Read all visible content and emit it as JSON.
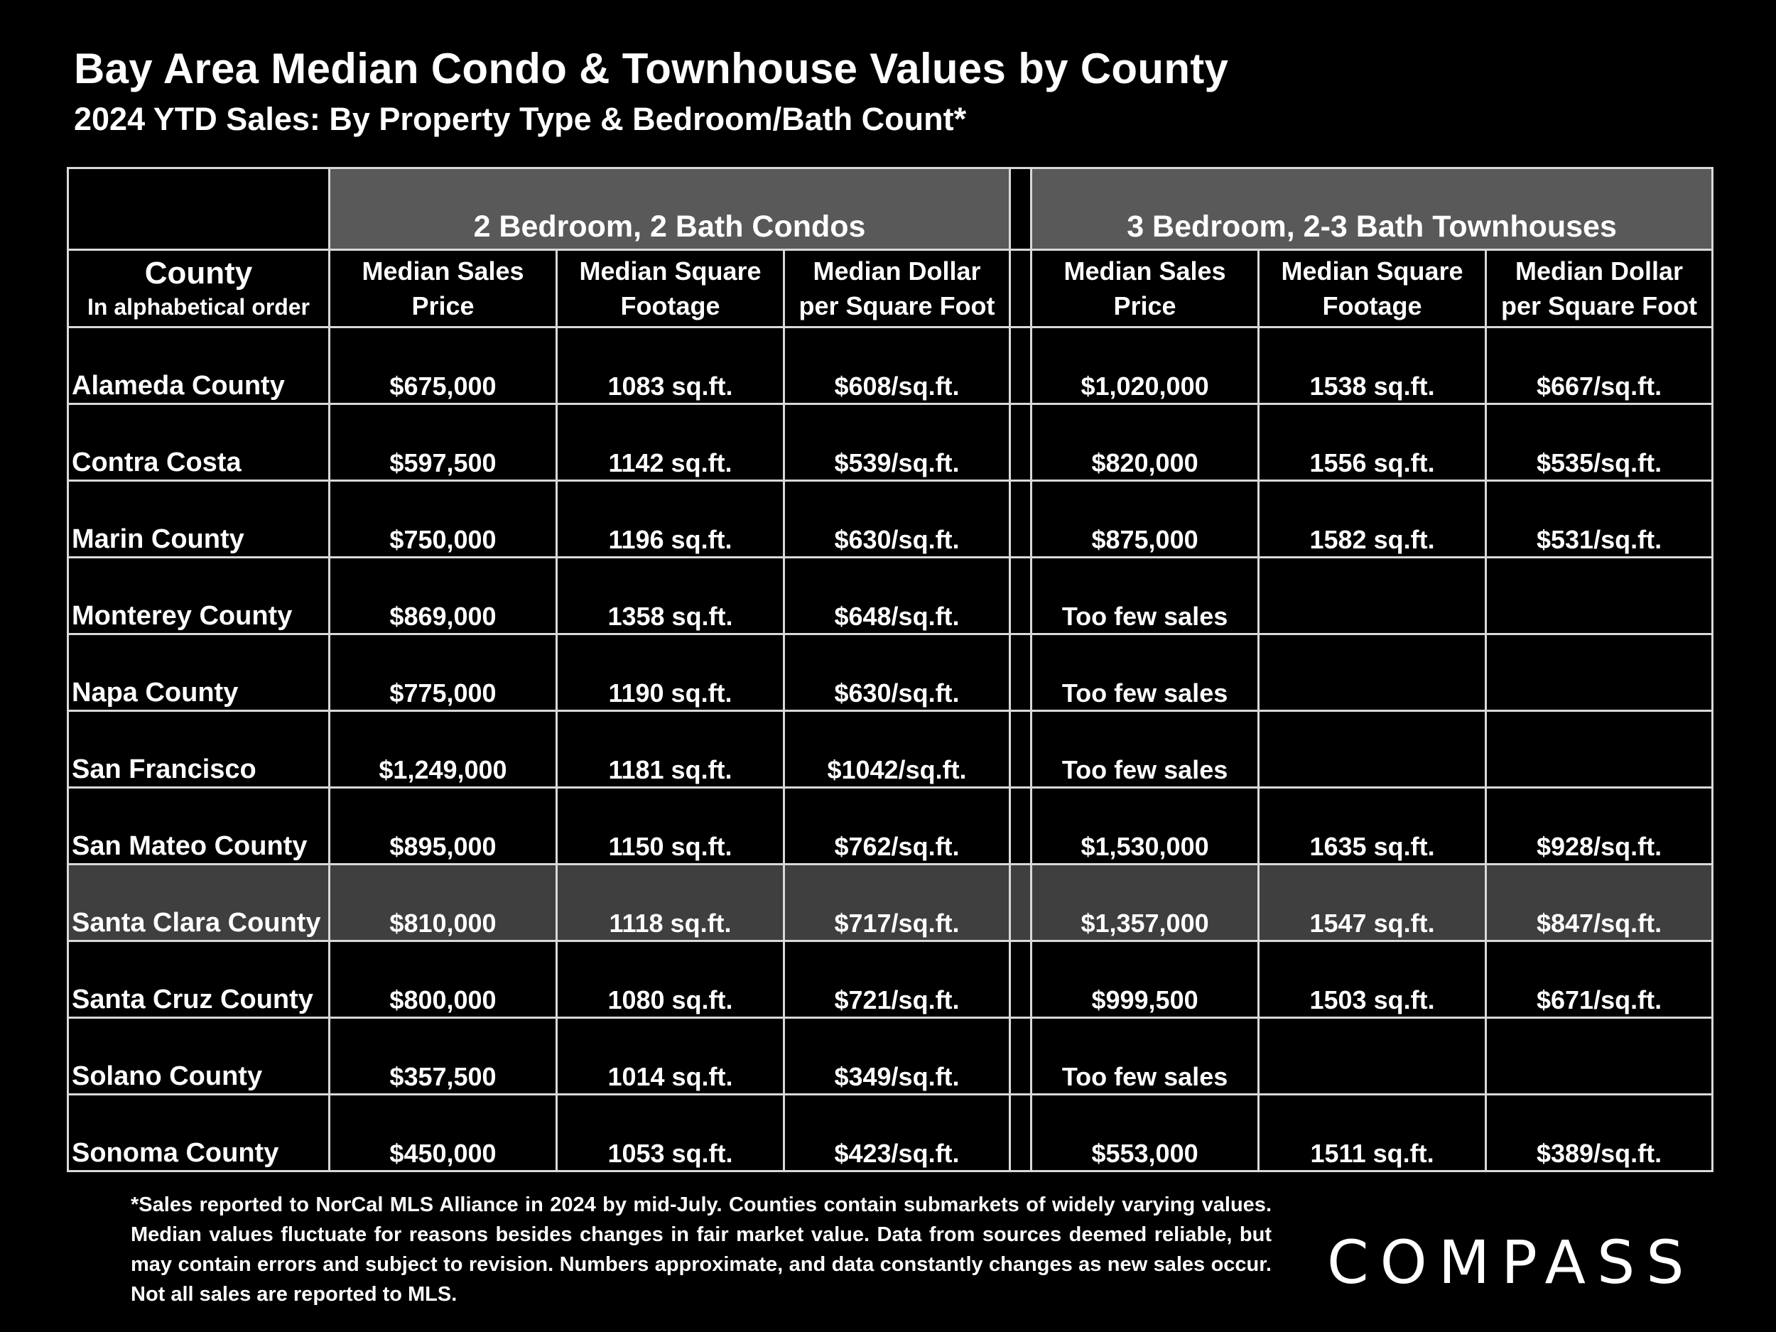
{
  "header": {
    "title": "Bay Area Median Condo & Townhouse Values by County",
    "subtitle": "2024 YTD Sales:  By Property Type & Bedroom/Bath Count*"
  },
  "chart_data": {
    "type": "table",
    "title": "Bay Area Median Condo & Townhouse Values by County",
    "subtitle": "2024 YTD Sales:  By Property Type & Bedroom/Bath Count*",
    "groups": [
      "2 Bedroom, 2 Bath Condos",
      "3 Bedroom, 2-3 Bath Townhouses"
    ],
    "county_header": "County",
    "county_subheader": "In alphabetical order",
    "columns": [
      [
        "Median Sales",
        "Price"
      ],
      [
        "Median Square",
        "Footage"
      ],
      [
        "Median Dollar",
        "per Square Foot"
      ],
      [
        "Median Sales",
        "Price"
      ],
      [
        "Median Square",
        "Footage"
      ],
      [
        "Median Dollar",
        "per Square Foot"
      ]
    ],
    "highlight_row": "Santa Clara County",
    "rows": [
      [
        "Alameda County",
        "$675,000",
        "1083 sq.ft.",
        "$608/sq.ft.",
        "$1,020,000",
        "1538 sq.ft.",
        "$667/sq.ft."
      ],
      [
        "Contra Costa",
        "$597,500",
        "1142 sq.ft.",
        "$539/sq.ft.",
        "$820,000",
        "1556 sq.ft.",
        "$535/sq.ft."
      ],
      [
        "Marin County",
        "$750,000",
        "1196 sq.ft.",
        "$630/sq.ft.",
        "$875,000",
        "1582 sq.ft.",
        "$531/sq.ft."
      ],
      [
        "Monterey County",
        "$869,000",
        "1358 sq.ft.",
        "$648/sq.ft.",
        "Too few sales",
        "",
        ""
      ],
      [
        "Napa County",
        "$775,000",
        "1190 sq.ft.",
        "$630/sq.ft.",
        "Too few sales",
        "",
        ""
      ],
      [
        "San Francisco",
        "$1,249,000",
        "1181 sq.ft.",
        "$1042/sq.ft.",
        "Too few sales",
        "",
        ""
      ],
      [
        "San Mateo County",
        "$895,000",
        "1150 sq.ft.",
        "$762/sq.ft.",
        "$1,530,000",
        "1635 sq.ft.",
        "$928/sq.ft."
      ],
      [
        "Santa Clara County",
        "$810,000",
        "1118 sq.ft.",
        "$717/sq.ft.",
        "$1,357,000",
        "1547 sq.ft.",
        "$847/sq.ft."
      ],
      [
        "Santa Cruz County",
        "$800,000",
        "1080 sq.ft.",
        "$721/sq.ft.",
        "$999,500",
        "1503 sq.ft.",
        "$671/sq.ft."
      ],
      [
        "Solano County",
        "$357,500",
        "1014 sq.ft.",
        "$349/sq.ft.",
        "Too few sales",
        "",
        ""
      ],
      [
        "Sonoma County",
        "$450,000",
        "1053 sq.ft.",
        "$423/sq.ft.",
        "$553,000",
        "1511 sq.ft.",
        "$389/sq.ft."
      ]
    ]
  },
  "footnote": "*Sales reported to NorCal MLS Alliance in 2024 by mid-July. Counties contain submarkets of widely varying values. Median values fluctuate for reasons besides changes in fair market value. Data from sources deemed reliable, but may contain errors and subject to revision.  Numbers approximate, and data constantly changes as new sales occur. Not all sales are reported to MLS.",
  "logo": {
    "text": "COMPASS"
  },
  "colors": {
    "background": "#000000",
    "group_header": "#595959",
    "highlight_row": "#3f3f3f",
    "grid": "#d9d9d9"
  }
}
